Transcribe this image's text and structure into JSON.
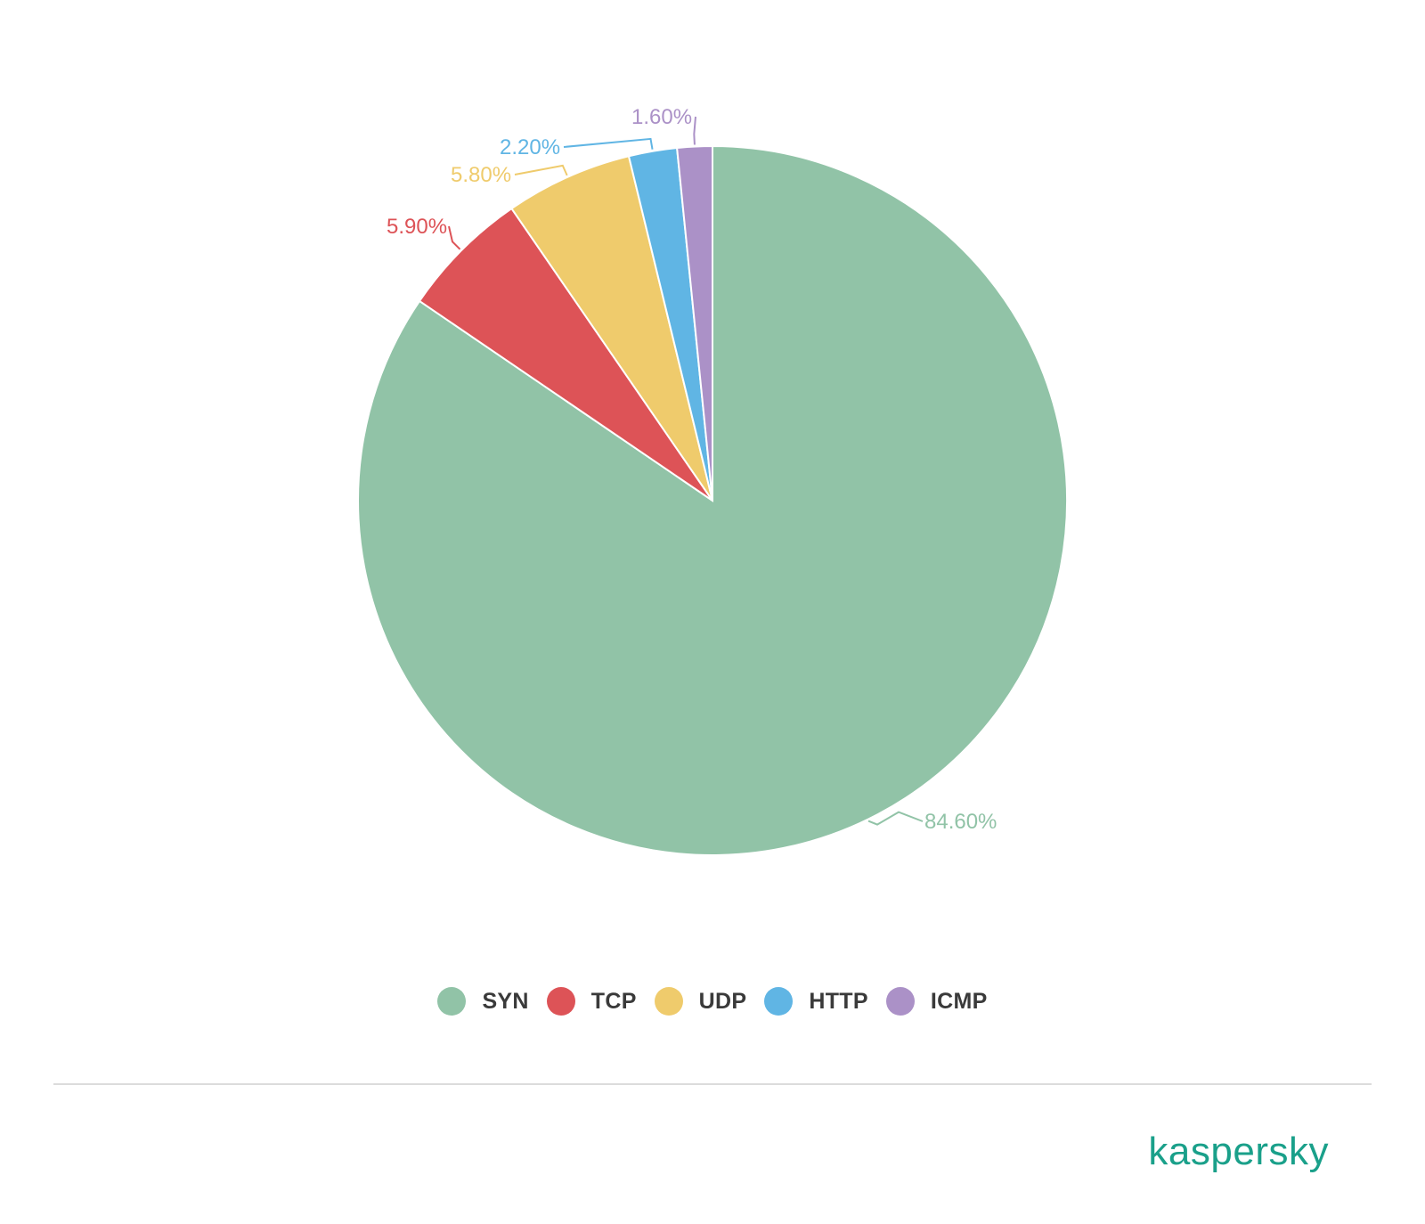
{
  "chart_data": {
    "type": "pie",
    "title": "",
    "start_angle": 0,
    "direction": "clockwise",
    "slices": [
      {
        "name": "SYN",
        "value": 84.6,
        "label": "84.60%",
        "color": "#91c3a7"
      },
      {
        "name": "TCP",
        "value": 5.9,
        "label": "5.90%",
        "color": "#dd5357"
      },
      {
        "name": "UDP",
        "value": 5.8,
        "label": "5.80%",
        "color": "#efcb6c"
      },
      {
        "name": "HTTP",
        "value": 2.2,
        "label": "2.20%",
        "color": "#60b5e4"
      },
      {
        "name": "ICMP",
        "value": 1.6,
        "label": "1.60%",
        "color": "#ab91c7"
      }
    ],
    "legend_position": "bottom"
  },
  "legend": {
    "items": [
      "SYN",
      "TCP",
      "UDP",
      "HTTP",
      "ICMP"
    ]
  },
  "brand": {
    "logo_text": "kaspersky",
    "color": "#1aa08a"
  }
}
